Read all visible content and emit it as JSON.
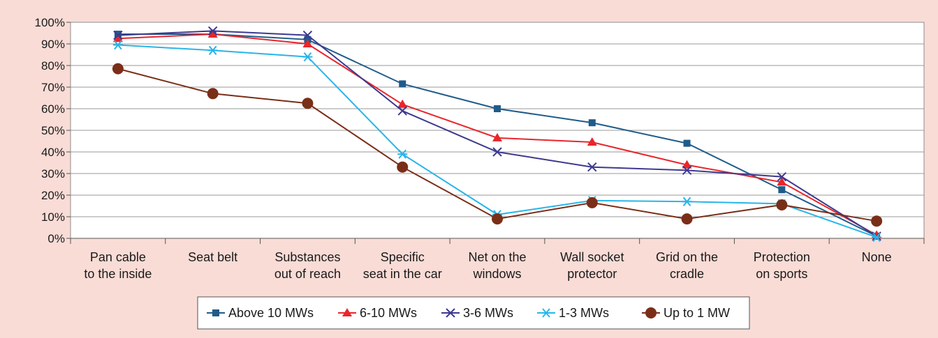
{
  "chart_data": {
    "type": "line",
    "title": "",
    "xlabel": "",
    "ylabel": "",
    "categories": [
      [
        "Pan cable",
        "to the inside"
      ],
      [
        "Seat belt"
      ],
      [
        "Substances",
        "out of reach"
      ],
      [
        "Specific",
        "seat in the car"
      ],
      [
        "Net on the",
        "windows"
      ],
      [
        "Wall socket",
        "protector"
      ],
      [
        "Grid on the",
        "cradle"
      ],
      [
        "Protection",
        "on sports"
      ],
      [
        "None"
      ]
    ],
    "ylim": [
      0,
      100
    ],
    "yticks": [
      "0%",
      "10%",
      "20%",
      "30%",
      "40%",
      "50%",
      "60%",
      "70%",
      "80%",
      "90%",
      "100%"
    ],
    "grid": true,
    "legend_position": "bottom",
    "series": [
      {
        "name": "Above 10 MWs",
        "color": "#1f5c8a",
        "marker": "square",
        "values": [
          94.5,
          94.5,
          92,
          71.5,
          60,
          53.5,
          44,
          22.5,
          1
        ]
      },
      {
        "name": "6-10 MWs",
        "color": "#e8262b",
        "marker": "triangle",
        "values": [
          92.5,
          94.5,
          90,
          62,
          46.5,
          44.5,
          34,
          26,
          1.5
        ]
      },
      {
        "name": "3-6 MWs",
        "color": "#3d3a8f",
        "marker": "x",
        "values": [
          94,
          96,
          94,
          59,
          40,
          33,
          31.5,
          28.5,
          1
        ]
      },
      {
        "name": "1-3 MWs",
        "color": "#29b5e8",
        "marker": "asterisk",
        "values": [
          89.5,
          87,
          84,
          39,
          11,
          17.5,
          17,
          16,
          0.5
        ]
      },
      {
        "name": "Up to 1 MW",
        "color": "#7a2e17",
        "marker": "circle",
        "values": [
          78.5,
          67,
          62.5,
          33,
          9,
          16.5,
          9,
          15.5,
          8
        ]
      }
    ]
  }
}
